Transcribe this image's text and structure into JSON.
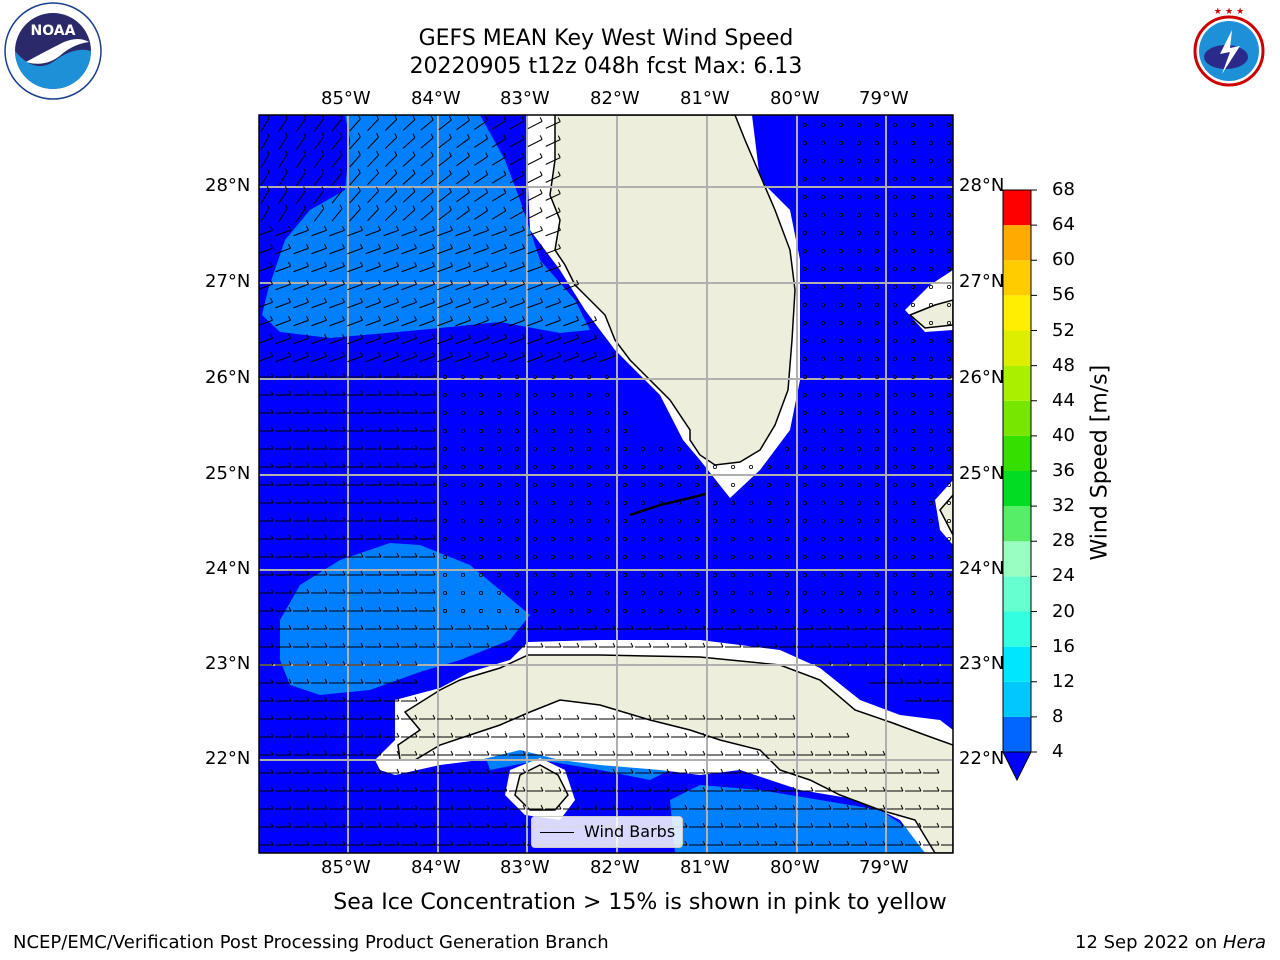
{
  "title": {
    "line1": "GEFS MEAN Key West Wind Speed",
    "line2": "20220905 t12z 048h fcst   Max: 6.13"
  },
  "logos": {
    "left": {
      "text": "NOAA",
      "ring_text": "NATIONAL OCEANIC AND ATMOSPHERIC ADMINISTRATION · U.S. DEPARTMENT OF COMMERCE"
    },
    "right": {
      "ring_text": "NATIONAL WEATHER SERVICE"
    }
  },
  "map": {
    "lon_labels": [
      "85°W",
      "84°W",
      "83°W",
      "82°W",
      "81°W",
      "80°W",
      "79°W"
    ],
    "lat_labels": [
      "28°N",
      "27°N",
      "26°N",
      "25°N",
      "24°N",
      "23°N",
      "22°N"
    ],
    "legend_label": "Wind Barbs",
    "colors": {
      "ocean_dark": "#0000fe",
      "ocean_light": "#0080ff",
      "land": "#eeeedc",
      "grid": "#b0b0b0"
    }
  },
  "colorbar": {
    "title": "Wind Speed [m/s]",
    "ticks": [
      "4",
      "8",
      "12",
      "16",
      "20",
      "24",
      "28",
      "32",
      "36",
      "40",
      "44",
      "48",
      "52",
      "56",
      "60",
      "64",
      "68"
    ],
    "colors": [
      "#0066ff",
      "#00ccff",
      "#00ffff",
      "#33ffee",
      "#66ffdd",
      "#99ffcc",
      "#00ee66",
      "#00dd00",
      "#44ee00",
      "#88ee00",
      "#ccee00",
      "#eeee00",
      "#ffee00",
      "#ffcc00",
      "#ffaa00",
      "#ff8800",
      "#ff5500",
      "#ff2200",
      "#ff0000"
    ]
  },
  "caption": "Sea Ice Concentration > 15% is shown in pink to yellow",
  "footer": {
    "left": "NCEP/EMC/Verification Post Processing Product Generation Branch",
    "right_prefix": "12 Sep 2022 on ",
    "right_italic": "Hera"
  }
}
